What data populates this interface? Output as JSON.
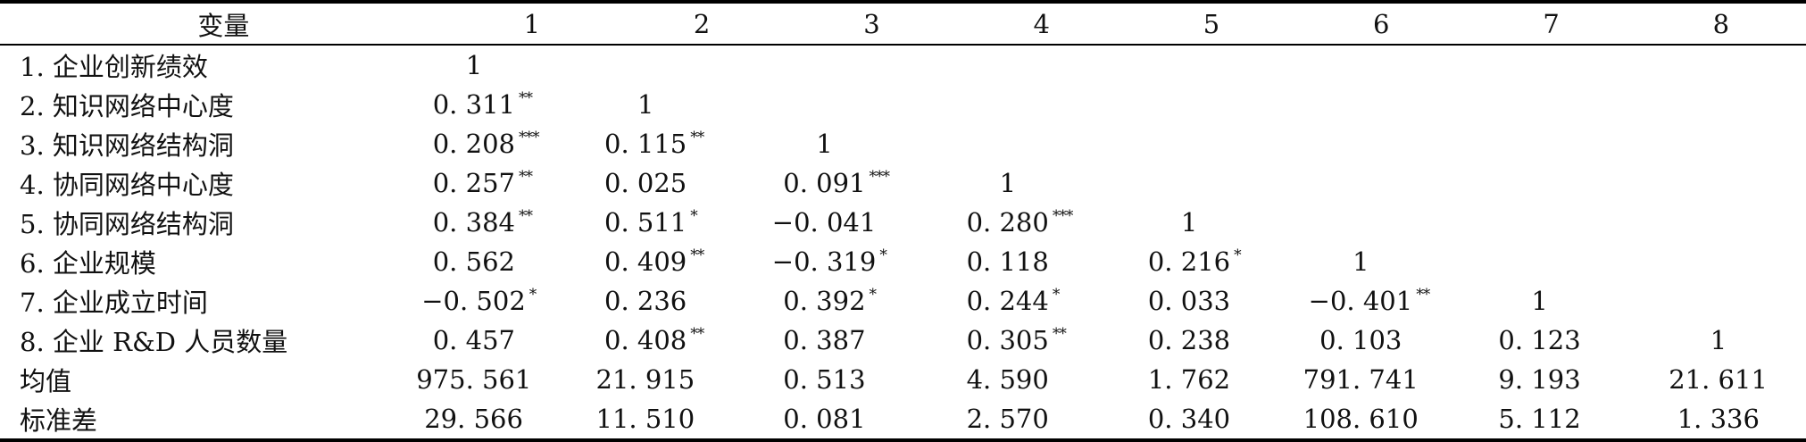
{
  "table": {
    "header": [
      "变量",
      "1",
      "2",
      "3",
      "4",
      "5",
      "6",
      "7",
      "8"
    ],
    "rows": [
      {
        "label": "1. 企业创新绩效",
        "cells": [
          {
            "v": "1",
            "s": ""
          }
        ]
      },
      {
        "label": "2. 知识网络中心度",
        "cells": [
          {
            "v": "0. 311",
            "s": "**"
          },
          {
            "v": "1",
            "s": ""
          }
        ]
      },
      {
        "label": "3. 知识网络结构洞",
        "cells": [
          {
            "v": "0. 208",
            "s": "***"
          },
          {
            "v": "0. 115",
            "s": "**"
          },
          {
            "v": "1",
            "s": ""
          }
        ]
      },
      {
        "label": "4. 协同网络中心度",
        "cells": [
          {
            "v": "0. 257",
            "s": "**"
          },
          {
            "v": "0. 025",
            "s": ""
          },
          {
            "v": "0. 091",
            "s": "***"
          },
          {
            "v": "1",
            "s": ""
          }
        ]
      },
      {
        "label": "5. 协同网络结构洞",
        "cells": [
          {
            "v": "0. 384",
            "s": "**"
          },
          {
            "v": "0. 511",
            "s": "*"
          },
          {
            "v": "−0. 041",
            "s": ""
          },
          {
            "v": "0. 280",
            "s": "***"
          },
          {
            "v": "1",
            "s": ""
          }
        ]
      },
      {
        "label": "6. 企业规模",
        "cells": [
          {
            "v": "0. 562",
            "s": ""
          },
          {
            "v": "0. 409",
            "s": "**"
          },
          {
            "v": "−0. 319",
            "s": "*"
          },
          {
            "v": "0. 118",
            "s": ""
          },
          {
            "v": "0. 216",
            "s": "*"
          },
          {
            "v": "1",
            "s": ""
          }
        ]
      },
      {
        "label": "7. 企业成立时间",
        "cells": [
          {
            "v": "−0. 502",
            "s": "*"
          },
          {
            "v": "0. 236",
            "s": ""
          },
          {
            "v": "0. 392",
            "s": "*"
          },
          {
            "v": "0. 244",
            "s": "*"
          },
          {
            "v": "0. 033",
            "s": ""
          },
          {
            "v": "−0. 401",
            "s": "**"
          },
          {
            "v": "1",
            "s": ""
          }
        ]
      },
      {
        "label": "8. 企业 R&D 人员数量",
        "cells": [
          {
            "v": "0. 457",
            "s": ""
          },
          {
            "v": "0. 408",
            "s": "**"
          },
          {
            "v": "0. 387",
            "s": ""
          },
          {
            "v": "0. 305",
            "s": "**"
          },
          {
            "v": "0. 238",
            "s": ""
          },
          {
            "v": "0. 103",
            "s": ""
          },
          {
            "v": "0. 123",
            "s": ""
          },
          {
            "v": "1",
            "s": ""
          }
        ]
      },
      {
        "label": "均值",
        "cells": [
          {
            "v": "975. 561",
            "s": ""
          },
          {
            "v": "21. 915",
            "s": ""
          },
          {
            "v": "0. 513",
            "s": ""
          },
          {
            "v": "4. 590",
            "s": ""
          },
          {
            "v": "1. 762",
            "s": ""
          },
          {
            "v": "791. 741",
            "s": ""
          },
          {
            "v": "9. 193",
            "s": ""
          },
          {
            "v": "21. 611",
            "s": ""
          }
        ]
      },
      {
        "label": "标准差",
        "cells": [
          {
            "v": "29. 566",
            "s": ""
          },
          {
            "v": "11. 510",
            "s": ""
          },
          {
            "v": "0. 081",
            "s": ""
          },
          {
            "v": "2. 570",
            "s": ""
          },
          {
            "v": "0. 340",
            "s": ""
          },
          {
            "v": "108. 610",
            "s": ""
          },
          {
            "v": "5. 112",
            "s": ""
          },
          {
            "v": "1. 336",
            "s": ""
          }
        ]
      }
    ]
  }
}
